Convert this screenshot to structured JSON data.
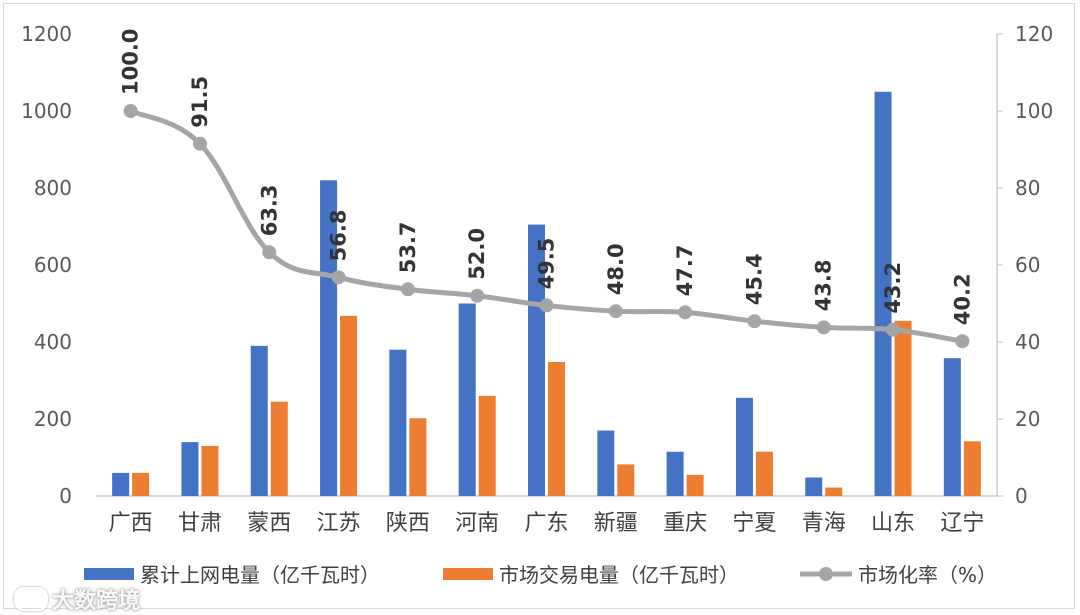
{
  "chart_data": {
    "type": "bar",
    "categories": [
      "广西",
      "甘肃",
      "蒙西",
      "江苏",
      "陕西",
      "河南",
      "广东",
      "新疆",
      "重庆",
      "宁夏",
      "青海",
      "山东",
      "辽宁"
    ],
    "series": [
      {
        "name": "累计上网电量（亿千瓦时）",
        "kind": "bar",
        "axis": "left",
        "color": "#4472c4",
        "values": [
          60,
          140,
          390,
          820,
          380,
          500,
          705,
          170,
          115,
          255,
          48,
          1050,
          358
        ]
      },
      {
        "name": "市场交易电量（亿千瓦时）",
        "kind": "bar",
        "axis": "left",
        "color": "#ed7d31",
        "values": [
          60,
          130,
          245,
          468,
          202,
          260,
          348,
          82,
          55,
          115,
          22,
          455,
          142
        ]
      },
      {
        "name": "市场化率（%）",
        "kind": "line",
        "axis": "right",
        "color": "#a5a5a5",
        "values": [
          100.0,
          91.5,
          63.3,
          56.8,
          53.7,
          52.0,
          49.5,
          48.0,
          47.7,
          45.4,
          43.8,
          43.2,
          40.2
        ],
        "labels": [
          "100.0",
          "91.5",
          "63.3",
          "56.8",
          "53.7",
          "52.0",
          "49.5",
          "48.0",
          "47.7",
          "45.4",
          "43.8",
          "43.2",
          "40.2"
        ]
      }
    ],
    "y_left": {
      "ticks": [
        "0",
        "200",
        "400",
        "600",
        "800",
        "1000",
        "1200"
      ],
      "range": [
        0,
        1200
      ]
    },
    "y_right": {
      "ticks": [
        "0",
        "20",
        "40",
        "60",
        "80",
        "100",
        "120"
      ],
      "range": [
        0,
        120
      ]
    },
    "grid": false,
    "legend": "bottom"
  },
  "watermark": {
    "text": "大数跨境"
  }
}
